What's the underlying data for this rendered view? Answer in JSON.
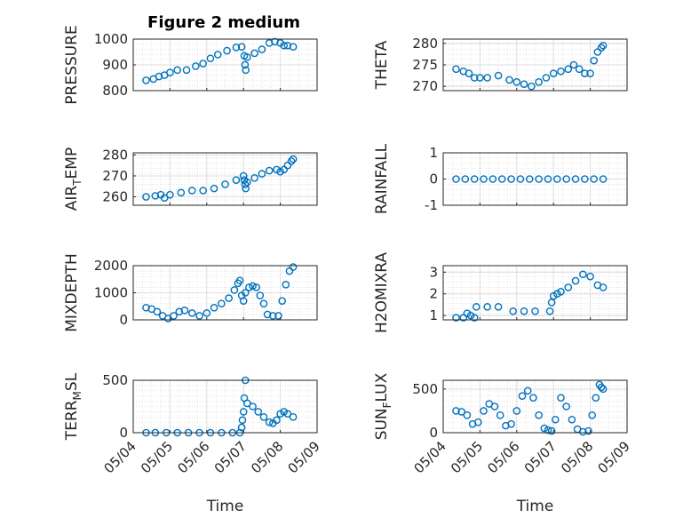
{
  "chart_data": {
    "type": "scatter",
    "title": "Figure 2 medium",
    "grid": true,
    "minor_grid": true,
    "marker": "open-circle",
    "color": "#0072BD",
    "x_ticks": [
      "05/04",
      "05/05",
      "05/06",
      "05/07",
      "05/08",
      "05/09"
    ],
    "x_range_days": [
      4.0,
      9.0
    ],
    "xlabel": "Time",
    "panels": [
      {
        "ylabel": [
          "PRESSURE"
        ],
        "ylim": [
          800,
          1000
        ],
        "yticks": [
          800,
          900,
          1000
        ],
        "yticklabels": [
          "800",
          "900",
          "1000"
        ],
        "show_xticks": false,
        "segments": [
          {
            "x": [
              4.35,
              4.55,
              4.7,
              4.85,
              5.0,
              5.2,
              5.45,
              5.7,
              5.9,
              6.1,
              6.3,
              6.55,
              6.8,
              6.95
            ],
            "y": [
              840,
              845,
              855,
              860,
              870,
              880,
              880,
              895,
              905,
              925,
              940,
              955,
              968,
              970
            ]
          },
          {
            "x": [
              7.02,
              7.04,
              7.06
            ],
            "y": [
              935,
              900,
              880
            ]
          },
          {
            "x": [
              7.1,
              7.3,
              7.5,
              7.7,
              7.85,
              8.0,
              8.1,
              8.2,
              8.35
            ],
            "y": [
              930,
              945,
              960,
              985,
              990,
              985,
              975,
              975,
              970
            ]
          }
        ]
      },
      {
        "ylabel": [
          "THETA"
        ],
        "ylim": [
          269,
          281
        ],
        "yticks": [
          270,
          275,
          280
        ],
        "yticklabels": [
          "270",
          "275",
          "280"
        ],
        "show_xticks": false,
        "segments": [
          {
            "x": [
              4.35,
              4.55,
              4.7,
              4.85,
              5.0,
              5.2,
              5.5,
              5.8,
              6.0,
              6.2,
              6.4,
              6.6,
              6.8,
              7.0,
              7.2,
              7.4,
              7.55,
              7.7,
              7.85,
              8.0,
              8.1,
              8.2,
              8.3,
              8.35
            ],
            "y": [
              274,
              273.5,
              273,
              272,
              272,
              272,
              272.5,
              271.5,
              271,
              270.5,
              270,
              271,
              272,
              273,
              273.5,
              274,
              275,
              274,
              273,
              273,
              276,
              278,
              279,
              279.5
            ]
          }
        ]
      },
      {
        "ylabel": [
          "AIR",
          "T",
          "EMP"
        ],
        "ylim": [
          256,
          281
        ],
        "yticks": [
          260,
          270,
          280
        ],
        "yticklabels": [
          "260",
          "270",
          "280"
        ],
        "show_xticks": false,
        "segments": [
          {
            "x": [
              4.35,
              4.6,
              4.75,
              4.85,
              5.0,
              5.3,
              5.6,
              5.9,
              6.2,
              6.5,
              6.8,
              7.0
            ],
            "y": [
              260,
              260.5,
              261,
              259.5,
              261,
              262,
              263,
              263,
              264,
              266,
              268,
              270
            ]
          },
          {
            "x": [
              7.02,
              7.04,
              7.06
            ],
            "y": [
              268,
              266,
              264
            ]
          },
          {
            "x": [
              7.1,
              7.3,
              7.5,
              7.7,
              7.9,
              8.0,
              8.1,
              8.2,
              8.3,
              8.35
            ],
            "y": [
              267,
              269,
              271,
              272.5,
              273,
              272,
              273,
              275,
              277,
              278
            ]
          }
        ]
      },
      {
        "ylabel": [
          "RAINFALL"
        ],
        "ylim": [
          -1,
          1
        ],
        "yticks": [
          -1,
          0,
          1
        ],
        "yticklabels": [
          "-1",
          "0",
          "1"
        ],
        "show_xticks": false,
        "segments": [
          {
            "x": [
              4.35,
              4.6,
              4.85,
              5.1,
              5.35,
              5.6,
              5.85,
              6.1,
              6.35,
              6.6,
              6.85,
              7.1,
              7.35,
              7.6,
              7.85,
              8.1,
              8.35
            ],
            "y": [
              0,
              0,
              0,
              0,
              0,
              0,
              0,
              0,
              0,
              0,
              0,
              0,
              0,
              0,
              0,
              0,
              0
            ]
          }
        ]
      },
      {
        "ylabel": [
          "MIXDEPTH"
        ],
        "ylim": [
          0,
          2000
        ],
        "yticks": [
          0,
          1000,
          2000
        ],
        "yticklabels": [
          "0",
          "1000",
          "2000"
        ],
        "show_xticks": false,
        "segments": [
          {
            "x": [
              4.35,
              4.5,
              4.65,
              4.8,
              4.95,
              5.1,
              5.25,
              5.4,
              5.6,
              5.8,
              6.0,
              6.2,
              6.4,
              6.6,
              6.75,
              6.85,
              6.9
            ],
            "y": [
              450,
              400,
              300,
              150,
              50,
              150,
              300,
              350,
              250,
              150,
              250,
              450,
              600,
              800,
              1100,
              1350,
              1450
            ]
          },
          {
            "x": [
              6.95,
              7.0,
              7.05,
              7.15,
              7.25,
              7.35,
              7.45,
              7.55
            ],
            "y": [
              900,
              700,
              1000,
              1200,
              1250,
              1200,
              900,
              600
            ]
          },
          {
            "x": [
              7.65,
              7.8,
              7.95,
              8.05,
              8.15,
              8.25,
              8.35
            ],
            "y": [
              200,
              150,
              150,
              700,
              1300,
              1800,
              1950
            ]
          }
        ]
      },
      {
        "ylabel": [
          "H2OMIXRA"
        ],
        "ylim": [
          0.8,
          3.3
        ],
        "yticks": [
          1,
          2,
          3
        ],
        "yticklabels": [
          "1",
          "2",
          "3"
        ],
        "show_xticks": false,
        "segments": [
          {
            "x": [
              4.35,
              4.55,
              4.65,
              4.75,
              4.85
            ],
            "y": [
              0.9,
              0.9,
              1.1,
              1.0,
              0.9
            ]
          },
          {
            "x": [
              4.9,
              5.2,
              5.5,
              5.9,
              6.2,
              6.5,
              6.9
            ],
            "y": [
              1.4,
              1.4,
              1.4,
              1.2,
              1.2,
              1.2,
              1.2
            ]
          },
          {
            "x": [
              6.95,
              7.0,
              7.1,
              7.2,
              7.4,
              7.6,
              7.8,
              8.0,
              8.2,
              8.35
            ],
            "y": [
              1.6,
              1.9,
              2.0,
              2.1,
              2.3,
              2.6,
              2.9,
              2.8,
              2.4,
              2.3
            ]
          }
        ]
      },
      {
        "ylabel": [
          "TERR",
          "M",
          "SL"
        ],
        "ylim": [
          0,
          500
        ],
        "yticks": [
          0,
          500
        ],
        "yticklabels": [
          "0",
          "500"
        ],
        "show_xticks": true,
        "segments": [
          {
            "x": [
              4.35,
              4.6,
              4.9,
              5.2,
              5.5,
              5.8,
              6.1,
              6.4,
              6.7,
              6.9
            ],
            "y": [
              0,
              0,
              0,
              0,
              0,
              0,
              0,
              0,
              0,
              0
            ]
          },
          {
            "x": [
              6.95,
              6.97,
              7.0,
              7.02,
              7.05
            ],
            "y": [
              50,
              120,
              200,
              330,
              500
            ]
          },
          {
            "x": [
              7.1,
              7.25,
              7.4,
              7.55,
              7.7,
              7.8,
              7.9,
              8.0,
              8.1,
              8.2,
              8.35
            ],
            "y": [
              280,
              250,
              200,
              150,
              100,
              90,
              120,
              180,
              200,
              180,
              150
            ]
          }
        ]
      },
      {
        "ylabel": [
          "SUN",
          "F",
          "LUX"
        ],
        "ylim": [
          0,
          600
        ],
        "yticks": [
          0,
          500
        ],
        "yticklabels": [
          "0",
          "500"
        ],
        "show_xticks": true,
        "segments": [
          {
            "x": [
              4.35,
              4.5,
              4.65,
              4.8,
              4.95,
              5.1,
              5.25,
              5.4,
              5.55,
              5.7,
              5.85,
              6.0,
              6.15,
              6.3,
              6.45,
              6.6,
              6.75,
              6.85,
              6.95,
              7.05,
              7.2,
              7.35,
              7.5,
              7.65,
              7.8,
              7.95,
              8.05,
              8.15,
              8.25,
              8.3,
              8.35
            ],
            "y": [
              250,
              240,
              200,
              100,
              120,
              250,
              330,
              300,
              200,
              80,
              100,
              250,
              420,
              480,
              400,
              200,
              50,
              30,
              20,
              150,
              400,
              300,
              150,
              40,
              10,
              20,
              200,
              400,
              550,
              520,
              500
            ]
          }
        ]
      }
    ]
  }
}
